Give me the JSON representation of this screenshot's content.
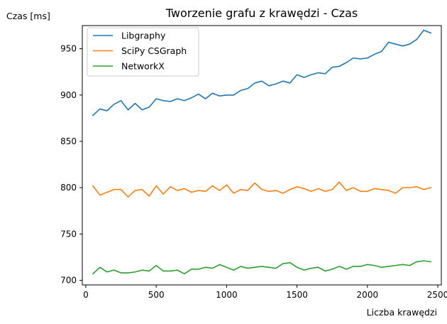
{
  "chart_data": {
    "type": "line",
    "title": "Tworzenie grafu z krawędzi - Czas",
    "xlabel": "Liczba krawędzi",
    "ylabel": "Czas [ms]",
    "xlim": [
      -25,
      2525
    ],
    "ylim": [
      695,
      975
    ],
    "x_ticks": [
      0,
      500,
      1000,
      1500,
      2000,
      2500
    ],
    "y_ticks": [
      700,
      750,
      800,
      850,
      900,
      950
    ],
    "grid": false,
    "legend_position": "top-left",
    "x": [
      50,
      100,
      150,
      200,
      250,
      300,
      350,
      400,
      450,
      500,
      550,
      600,
      650,
      700,
      750,
      800,
      850,
      900,
      950,
      1000,
      1050,
      1100,
      1150,
      1200,
      1250,
      1300,
      1350,
      1400,
      1450,
      1500,
      1550,
      1600,
      1650,
      1700,
      1750,
      1800,
      1850,
      1900,
      1950,
      2000,
      2050,
      2100,
      2150,
      2200,
      2250,
      2300,
      2350,
      2400,
      2450
    ],
    "series": [
      {
        "name": "Libgraphy",
        "color": "#1f77b4",
        "values": [
          878,
          885,
          883,
          890,
          894,
          884,
          891,
          884,
          887,
          896,
          894,
          893,
          896,
          894,
          897,
          901,
          896,
          902,
          899,
          900,
          900,
          905,
          907,
          913,
          915,
          910,
          912,
          915,
          913,
          922,
          919,
          922,
          924,
          923,
          930,
          931,
          935,
          940,
          939,
          940,
          944,
          947,
          957,
          955,
          953,
          955,
          960,
          970,
          967
        ]
      },
      {
        "name": "SciPy CSGraph",
        "color": "#ff7f0e",
        "values": [
          802,
          792,
          795,
          798,
          798,
          790,
          797,
          798,
          791,
          802,
          793,
          801,
          797,
          799,
          795,
          797,
          796,
          802,
          797,
          803,
          794,
          798,
          797,
          805,
          798,
          796,
          797,
          794,
          798,
          801,
          799,
          796,
          799,
          796,
          798,
          806,
          797,
          800,
          796,
          796,
          799,
          798,
          797,
          794,
          800,
          800,
          801,
          798,
          800
        ]
      },
      {
        "name": "NetworkX",
        "color": "#2ca02c",
        "values": [
          707,
          714,
          709,
          711,
          708,
          708,
          709,
          711,
          710,
          716,
          710,
          710,
          711,
          707,
          712,
          712,
          714,
          713,
          717,
          714,
          711,
          715,
          713,
          714,
          715,
          714,
          713,
          718,
          719,
          714,
          711,
          713,
          714,
          710,
          712,
          715,
          712,
          715,
          715,
          717,
          716,
          714,
          715,
          716,
          717,
          716,
          720,
          721,
          720
        ]
      }
    ]
  }
}
